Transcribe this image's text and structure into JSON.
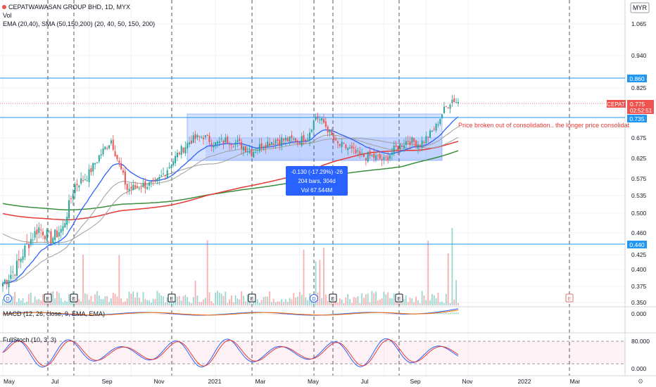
{
  "header": {
    "title": "CEPATWAWASAN GROUP BHD, 1D, MYX",
    "vol_label": "Vol",
    "ma_label": "EMA (20,40), SMA (50,150,200) (20, 40, 50, 150, 200)",
    "currency": "MYR"
  },
  "colors": {
    "up": "#26a69a",
    "down": "#ef5350",
    "ema20": "#2962ff",
    "ema40": "#9e9e9e",
    "sma50": "#9e9e9e",
    "sma150": "#e53935",
    "sma200": "#388e3c",
    "hline": "#2196f3",
    "box": "#2962ff",
    "measure": "#2962ff",
    "annotation": "#e53935"
  },
  "chart_data": [
    {
      "type": "candlestick",
      "panel": "price",
      "yticks": [
        "1.065",
        "0.940",
        "0.825",
        "0.675",
        "0.625",
        "0.575",
        "0.535",
        "0.500",
        "0.460",
        "0.425",
        "0.400",
        "0.375",
        "0.350"
      ],
      "xticks": [
        "May",
        "Jul",
        "Sep",
        "Nov",
        "2021",
        "Mar",
        "May",
        "Jul",
        "Sep",
        "Nov",
        "2022",
        "Mar"
      ],
      "start": 0.38,
      "path": [
        [
          0,
          0.38
        ],
        [
          6,
          0.4
        ],
        [
          12,
          0.44
        ],
        [
          18,
          0.47
        ],
        [
          24,
          0.45
        ],
        [
          30,
          0.47
        ],
        [
          36,
          0.56
        ],
        [
          42,
          0.58
        ],
        [
          48,
          0.63
        ],
        [
          54,
          0.67
        ],
        [
          58,
          0.61
        ],
        [
          62,
          0.55
        ],
        [
          70,
          0.56
        ],
        [
          76,
          0.56
        ],
        [
          82,
          0.6
        ],
        [
          88,
          0.64
        ],
        [
          94,
          0.67
        ],
        [
          100,
          0.68
        ],
        [
          106,
          0.66
        ],
        [
          112,
          0.67
        ],
        [
          118,
          0.66
        ],
        [
          124,
          0.64
        ],
        [
          130,
          0.66
        ],
        [
          136,
          0.67
        ],
        [
          142,
          0.67
        ],
        [
          148,
          0.67
        ],
        [
          152,
          0.68
        ],
        [
          156,
          0.74
        ],
        [
          160,
          0.72
        ],
        [
          166,
          0.66
        ],
        [
          172,
          0.65
        ],
        [
          178,
          0.63
        ],
        [
          184,
          0.63
        ],
        [
          190,
          0.62
        ],
        [
          196,
          0.65
        ],
        [
          202,
          0.67
        ],
        [
          208,
          0.66
        ],
        [
          212,
          0.68
        ],
        [
          216,
          0.71
        ],
        [
          220,
          0.76
        ],
        [
          224,
          0.79
        ],
        [
          228,
          0.78
        ]
      ],
      "ylim": [
        0.35,
        1.12
      ]
    },
    {
      "type": "bar",
      "panel": "volume",
      "label": "Vol"
    },
    {
      "type": "line",
      "panel": "macd",
      "label": "MACD (12, 26, close, 9, EMA, EMA)",
      "yticks": [
        "0.000"
      ]
    },
    {
      "type": "line",
      "panel": "stochastic",
      "label": "FullStoch (10, 3, 3)",
      "yticks": [
        "80.000",
        "0.000"
      ]
    }
  ],
  "price_labels": {
    "last": "0.775",
    "timer": "02:52:51",
    "symbol": "CEPAT",
    "level_860": "0.860",
    "level_735": "0.735",
    "level_440": "0.440"
  },
  "annotation": "Price broken out of consolidation.. the longer price consolidat",
  "measure": {
    "line1": "-0.130 (-17.29%) -26",
    "line2": "204 bars, 304d",
    "line3": "Vol 67.544M"
  },
  "events": [
    "D",
    "E",
    "E",
    "E",
    "E",
    "D",
    "E",
    "E",
    "E"
  ]
}
